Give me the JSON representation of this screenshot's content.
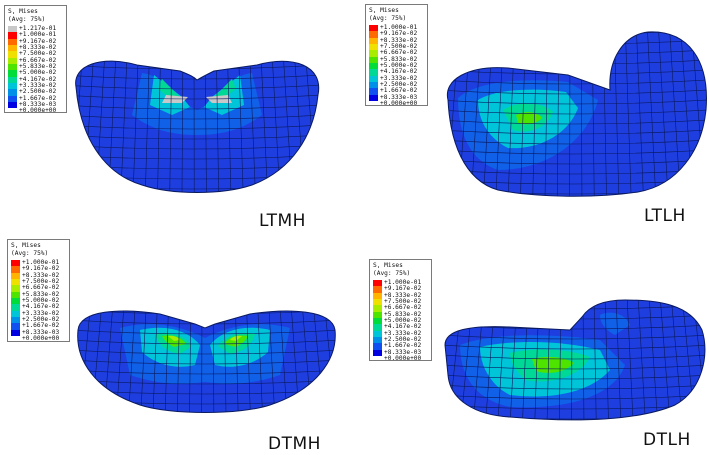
{
  "legend_header": {
    "line1": "S, Mises",
    "line2": "(Avg: 75%)"
  },
  "colors": {
    "band_top": "#c8c8c8",
    "scale": [
      "#ff0000",
      "#ff6a00",
      "#ffb400",
      "#f0e000",
      "#a8ec00",
      "#4ee400",
      "#00dc3a",
      "#00d896",
      "#00c4d8",
      "#0090e8",
      "#1050f0",
      "#0000e0"
    ],
    "body": "#1e3ee0",
    "edge": "#0a1a60"
  },
  "panels": [
    {
      "id": "LTMH",
      "label": "LTMH",
      "legend": [
        "+1.217e-01",
        "+1.000e-01",
        "+9.167e-02",
        "+8.333e-02",
        "+7.500e-02",
        "+6.667e-02",
        "+5.833e-02",
        "+5.000e-02",
        "+4.167e-02",
        "+3.333e-02",
        "+2.500e-02",
        "+1.667e-02",
        "+8.333e-03",
        "+0.000e+00"
      ]
    },
    {
      "id": "LTLH",
      "label": "LTLH",
      "legend": [
        "+1.000e-01",
        "+9.167e-02",
        "+8.333e-02",
        "+7.500e-02",
        "+6.667e-02",
        "+5.833e-02",
        "+5.000e-02",
        "+4.167e-02",
        "+3.333e-02",
        "+2.500e-02",
        "+1.667e-02",
        "+8.333e-03",
        "+0.000e+00"
      ]
    },
    {
      "id": "DTMH",
      "label": "DTMH",
      "legend": [
        "+1.000e-01",
        "+9.167e-02",
        "+8.333e-02",
        "+7.500e-02",
        "+6.667e-02",
        "+5.833e-02",
        "+5.000e-02",
        "+4.167e-02",
        "+3.333e-02",
        "+2.500e-02",
        "+1.667e-02",
        "+8.333e-03",
        "+0.000e+00"
      ]
    },
    {
      "id": "DTLH",
      "label": "DTLH",
      "legend": [
        "+1.000e-01",
        "+9.167e-02",
        "+8.333e-02",
        "+7.500e-02",
        "+6.667e-02",
        "+5.833e-02",
        "+5.000e-02",
        "+4.167e-02",
        "+3.333e-02",
        "+2.500e-02",
        "+1.667e-02",
        "+8.333e-03",
        "+0.000e+00"
      ]
    }
  ]
}
